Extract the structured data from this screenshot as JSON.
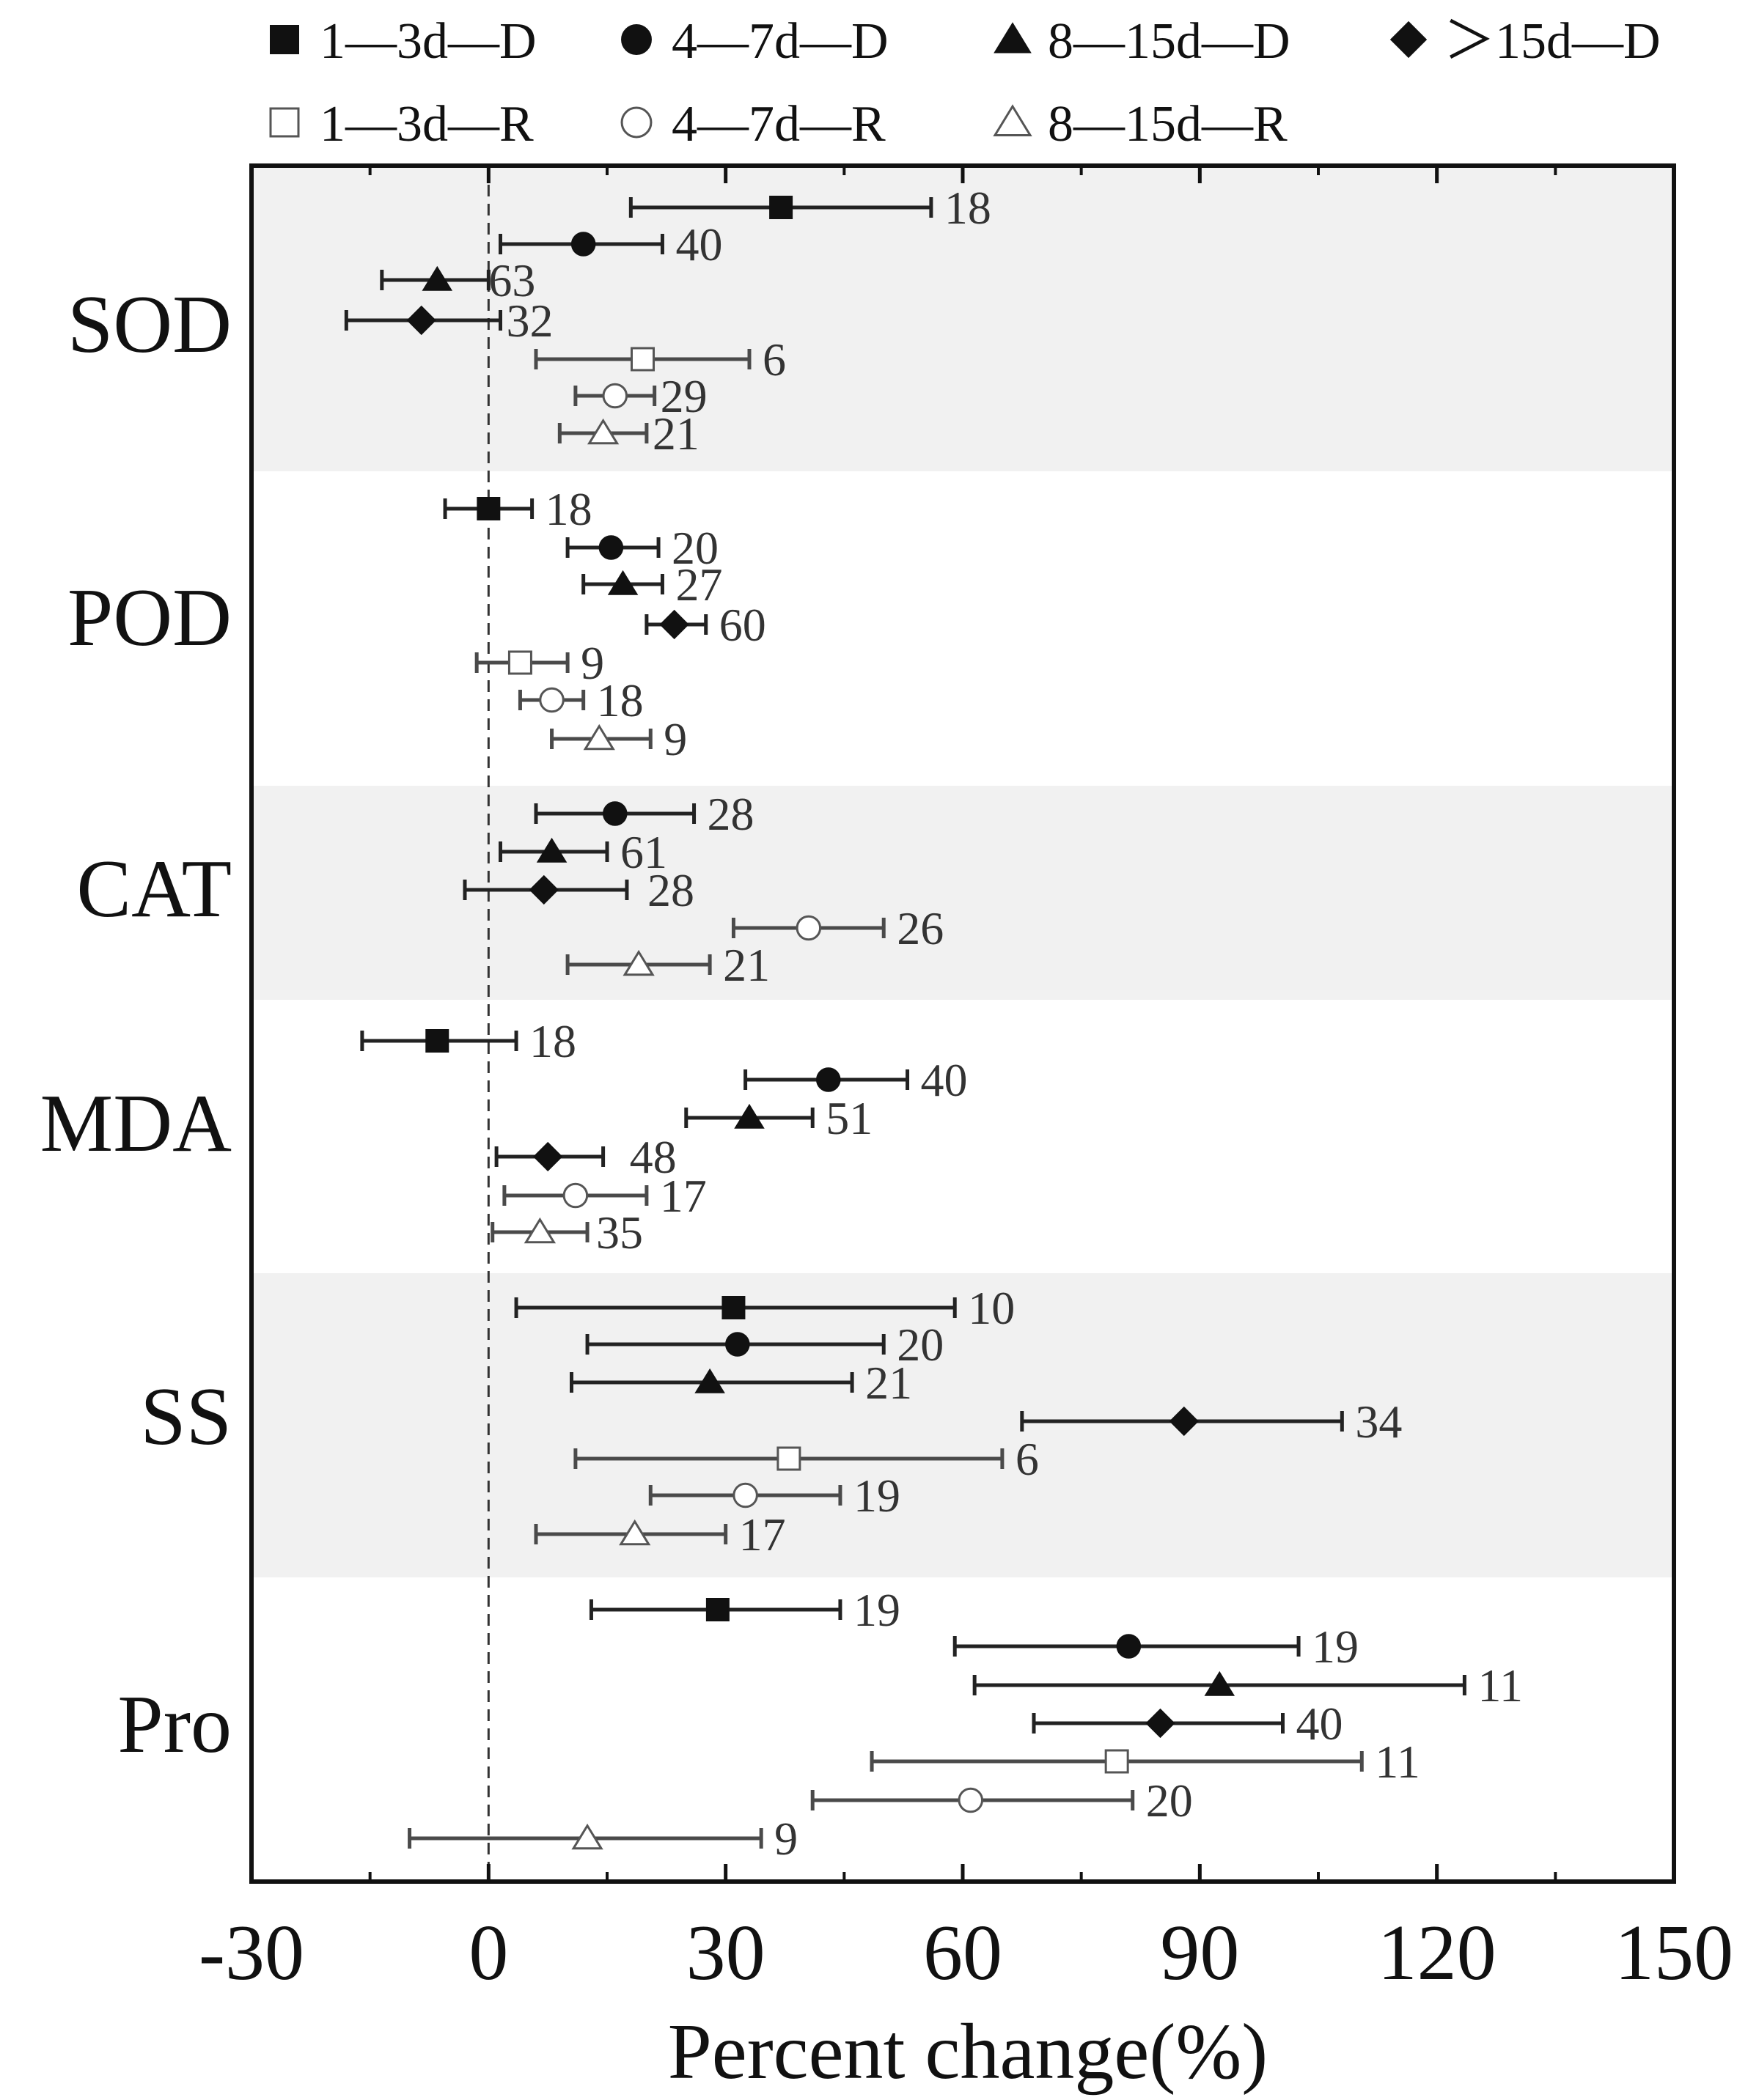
{
  "chart_data": {
    "type": "forest",
    "xlabel": "Percent change(%)",
    "xlim": [
      -30,
      150
    ],
    "xticks": [
      "-30",
      "0",
      "30",
      "60",
      "90",
      "120",
      "150"
    ],
    "xtick_values": [
      -30,
      0,
      30,
      60,
      90,
      120,
      150
    ],
    "reference_line": 0,
    "legend": [
      {
        "label": "1—3d—D",
        "marker": "square",
        "fill": "filled"
      },
      {
        "label": "4—7d—D",
        "marker": "circle",
        "fill": "filled"
      },
      {
        "label": "8—15d—D",
        "marker": "triangle",
        "fill": "filled"
      },
      {
        "label": "＞15d—D",
        "marker": "diamond",
        "fill": "filled"
      },
      {
        "label": "1—3d—R",
        "marker": "square",
        "fill": "open"
      },
      {
        "label": "4—7d—R",
        "marker": "circle",
        "fill": "open"
      },
      {
        "label": "8—15d—R",
        "marker": "triangle",
        "fill": "open"
      }
    ],
    "groups": [
      {
        "name": "SOD",
        "shaded": true,
        "rows": [
          {
            "marker": "square",
            "fill": "filled",
            "mean": 37,
            "low": 18,
            "high": 56,
            "n": "18"
          },
          {
            "marker": "circle",
            "fill": "filled",
            "mean": 12,
            "low": 1.5,
            "high": 22,
            "n": "40"
          },
          {
            "marker": "triangle",
            "fill": "filled",
            "mean": -6.5,
            "low": -13.5,
            "high": 0,
            "n": "63"
          },
          {
            "marker": "diamond",
            "fill": "filled",
            "mean": -8.5,
            "low": -18,
            "high": 1.5,
            "n": "32"
          },
          {
            "marker": "square",
            "fill": "open",
            "mean": 19.5,
            "low": 6,
            "high": 33,
            "n": "6"
          },
          {
            "marker": "circle",
            "fill": "open",
            "mean": 16,
            "low": 11,
            "high": 21,
            "n": "29"
          },
          {
            "marker": "triangle",
            "fill": "open",
            "mean": 14.5,
            "low": 9,
            "high": 20,
            "n": "21"
          }
        ]
      },
      {
        "name": "POD",
        "shaded": false,
        "rows": [
          {
            "marker": "square",
            "fill": "filled",
            "mean": 0,
            "low": -5.5,
            "high": 5.5,
            "n": "18"
          },
          {
            "marker": "circle",
            "fill": "filled",
            "mean": 15.5,
            "low": 10,
            "high": 21.5,
            "n": "20"
          },
          {
            "marker": "triangle",
            "fill": "filled",
            "mean": 17,
            "low": 12,
            "high": 22,
            "n": "27"
          },
          {
            "marker": "diamond",
            "fill": "filled",
            "mean": 23.5,
            "low": 20,
            "high": 27.5,
            "n": "60"
          },
          {
            "marker": "square",
            "fill": "open",
            "mean": 4,
            "low": -1.5,
            "high": 10,
            "n": "9"
          },
          {
            "marker": "circle",
            "fill": "open",
            "mean": 8,
            "low": 4,
            "high": 12,
            "n": "18"
          },
          {
            "marker": "triangle",
            "fill": "open",
            "mean": 14,
            "low": 8,
            "high": 20.5,
            "n": "9"
          }
        ]
      },
      {
        "name": "CAT",
        "shaded": true,
        "rows": [
          {
            "marker": "circle",
            "fill": "filled",
            "mean": 16,
            "low": 6,
            "high": 26,
            "n": "28"
          },
          {
            "marker": "triangle",
            "fill": "filled",
            "mean": 8,
            "low": 1.5,
            "high": 15,
            "n": "61"
          },
          {
            "marker": "diamond",
            "fill": "filled",
            "mean": 7,
            "low": -3,
            "high": 17.5,
            "n": "28"
          },
          {
            "marker": "circle",
            "fill": "open",
            "mean": 40.5,
            "low": 31,
            "high": 50,
            "n": "26"
          },
          {
            "marker": "triangle",
            "fill": "open",
            "mean": 19,
            "low": 10,
            "high": 28,
            "n": "21"
          }
        ]
      },
      {
        "name": "MDA",
        "shaded": false,
        "rows": [
          {
            "marker": "square",
            "fill": "filled",
            "mean": -6.5,
            "low": -16,
            "high": 3.5,
            "n": "18"
          },
          {
            "marker": "circle",
            "fill": "filled",
            "mean": 43,
            "low": 32.5,
            "high": 53,
            "n": "40"
          },
          {
            "marker": "triangle",
            "fill": "filled",
            "mean": 33,
            "low": 25,
            "high": 41,
            "n": "51"
          },
          {
            "marker": "diamond",
            "fill": "filled",
            "mean": 7.5,
            "low": 1,
            "high": 14.5,
            "n": "48"
          },
          {
            "marker": "circle",
            "fill": "open",
            "mean": 11,
            "low": 2,
            "high": 20,
            "n": "17"
          },
          {
            "marker": "triangle",
            "fill": "open",
            "mean": 6.5,
            "low": 0.5,
            "high": 12.5,
            "n": "35"
          }
        ]
      },
      {
        "name": "SS",
        "shaded": true,
        "rows": [
          {
            "marker": "square",
            "fill": "filled",
            "mean": 31,
            "low": 3.5,
            "high": 59,
            "n": "10"
          },
          {
            "marker": "circle",
            "fill": "filled",
            "mean": 31.5,
            "low": 12.5,
            "high": 50,
            "n": "20"
          },
          {
            "marker": "triangle",
            "fill": "filled",
            "mean": 28,
            "low": 10.5,
            "high": 46,
            "n": "21"
          },
          {
            "marker": "diamond",
            "fill": "filled",
            "mean": 88,
            "low": 67.5,
            "high": 108,
            "n": "34"
          },
          {
            "marker": "square",
            "fill": "open",
            "mean": 38,
            "low": 11,
            "high": 65,
            "n": "6"
          },
          {
            "marker": "circle",
            "fill": "open",
            "mean": 32.5,
            "low": 20.5,
            "high": 44.5,
            "n": "19"
          },
          {
            "marker": "triangle",
            "fill": "open",
            "mean": 18.5,
            "low": 6,
            "high": 30,
            "n": "17"
          }
        ]
      },
      {
        "name": "Pro",
        "shaded": false,
        "rows": [
          {
            "marker": "square",
            "fill": "filled",
            "mean": 29,
            "low": 13,
            "high": 44.5,
            "n": "19"
          },
          {
            "marker": "circle",
            "fill": "filled",
            "mean": 81,
            "low": 59,
            "high": 102.5,
            "n": "19"
          },
          {
            "marker": "triangle",
            "fill": "filled",
            "mean": 92.5,
            "low": 61.5,
            "high": 123.5,
            "n": "11"
          },
          {
            "marker": "diamond",
            "fill": "filled",
            "mean": 85,
            "low": 69,
            "high": 100.5,
            "n": "40"
          },
          {
            "marker": "square",
            "fill": "open",
            "mean": 79.5,
            "low": 48.5,
            "high": 110.5,
            "n": "11"
          },
          {
            "marker": "circle",
            "fill": "open",
            "mean": 61,
            "low": 41,
            "high": 81.5,
            "n": "20"
          },
          {
            "marker": "triangle",
            "fill": "open",
            "mean": 12.5,
            "low": -10,
            "high": 34.5,
            "n": "9"
          }
        ]
      }
    ]
  }
}
